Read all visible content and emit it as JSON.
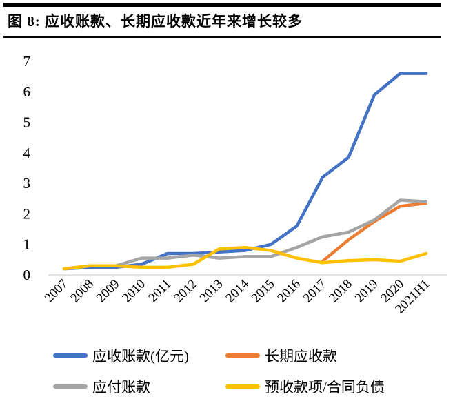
{
  "figure": {
    "title": "图 8:  应收账款、长期应收款近年来增长较多"
  },
  "chart_data": {
    "type": "line",
    "title": "应收账款、长期应收款近年来增长较多",
    "categories": [
      "2007",
      "2008",
      "2009",
      "2010",
      "2011",
      "2012",
      "2013",
      "2014",
      "2015",
      "2016",
      "2017",
      "2018",
      "2019",
      "2020",
      "2021H1"
    ],
    "series": [
      {
        "name": "应收账款(亿元)",
        "color": "#4472C4",
        "values": [
          0.2,
          0.25,
          0.25,
          0.35,
          0.7,
          0.7,
          0.75,
          0.8,
          1.0,
          1.6,
          3.2,
          3.85,
          5.9,
          6.6,
          6.6
        ]
      },
      {
        "name": "长期应收款",
        "color": "#ED7D31",
        "values": [
          null,
          null,
          null,
          null,
          null,
          null,
          null,
          null,
          null,
          null,
          0.45,
          1.15,
          1.75,
          2.25,
          2.35
        ]
      },
      {
        "name": "应付账款",
        "color": "#A5A5A5",
        "values": [
          0.2,
          0.3,
          0.3,
          0.55,
          0.55,
          0.65,
          0.55,
          0.6,
          0.6,
          0.9,
          1.25,
          1.4,
          1.8,
          2.45,
          2.4
        ]
      },
      {
        "name": "预收款项/合同负债",
        "color": "#FFC000",
        "values": [
          0.2,
          0.3,
          0.3,
          0.25,
          0.25,
          0.35,
          0.85,
          0.9,
          0.8,
          0.55,
          0.4,
          0.47,
          0.5,
          0.45,
          0.7
        ]
      }
    ],
    "xlabel": "",
    "ylabel": "",
    "ylim": [
      0,
      7
    ],
    "yticks": [
      0,
      1,
      2,
      3,
      4,
      5,
      6,
      7
    ],
    "grid": false,
    "legend_position": "bottom",
    "axis_color": "#D9D9D9"
  }
}
